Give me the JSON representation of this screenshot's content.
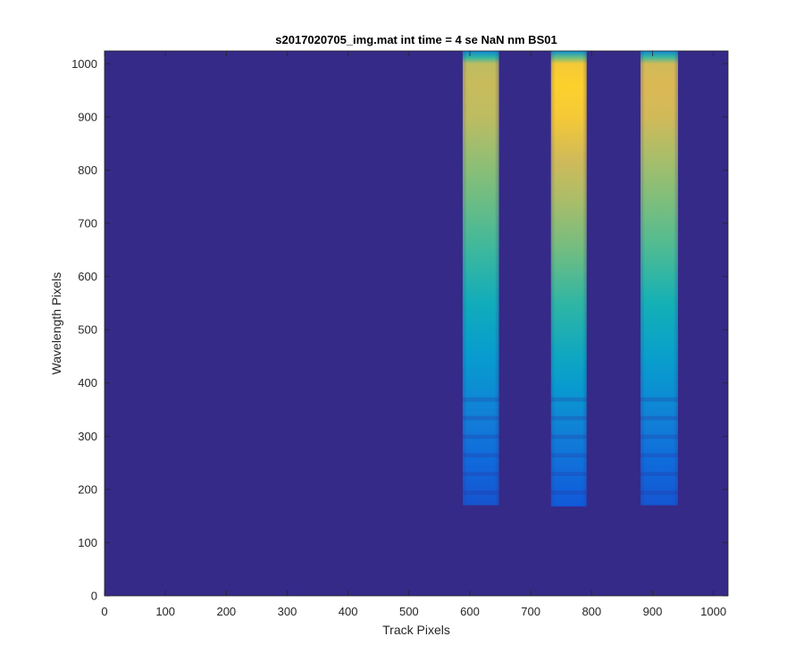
{
  "chart_data": {
    "type": "heatmap",
    "title": "s2017020705_img.mat int time = 4 se  NaN nm BS01",
    "xlabel": "Track Pixels",
    "ylabel": "Wavelength Pixels",
    "xlim": [
      0,
      1024
    ],
    "ylim": [
      0,
      1024
    ],
    "xticks": [
      0,
      100,
      200,
      300,
      400,
      500,
      600,
      700,
      800,
      900,
      1000
    ],
    "yticks": [
      0,
      100,
      200,
      300,
      400,
      500,
      600,
      700,
      800,
      900,
      1000
    ],
    "colormap": "parula",
    "background_color": "#352a87",
    "grid": false,
    "legend": "none",
    "tracks": [
      {
        "x_start": 588,
        "x_end": 648,
        "y_start": 170,
        "y_end": 1024,
        "peak_level": 0.86
      },
      {
        "x_start": 733,
        "x_end": 792,
        "y_start": 168,
        "y_end": 1024,
        "peak_level": 1.0
      },
      {
        "x_start": 880,
        "x_end": 942,
        "y_start": 170,
        "y_end": 1024,
        "peak_level": 0.9
      }
    ],
    "intensity_profile": [
      {
        "y": 170,
        "level": 0.1
      },
      {
        "y": 250,
        "level": 0.17
      },
      {
        "y": 330,
        "level": 0.25
      },
      {
        "y": 390,
        "level": 0.32
      },
      {
        "y": 450,
        "level": 0.38
      },
      {
        "y": 550,
        "level": 0.47
      },
      {
        "y": 650,
        "level": 0.57
      },
      {
        "y": 750,
        "level": 0.66
      },
      {
        "y": 820,
        "level": 0.72
      },
      {
        "y": 900,
        "level": 0.8
      },
      {
        "y": 960,
        "level": 0.82
      },
      {
        "y": 1000,
        "level": 0.8
      },
      {
        "y": 1012,
        "level": 0.55
      },
      {
        "y": 1024,
        "level": 0.28
      }
    ]
  }
}
